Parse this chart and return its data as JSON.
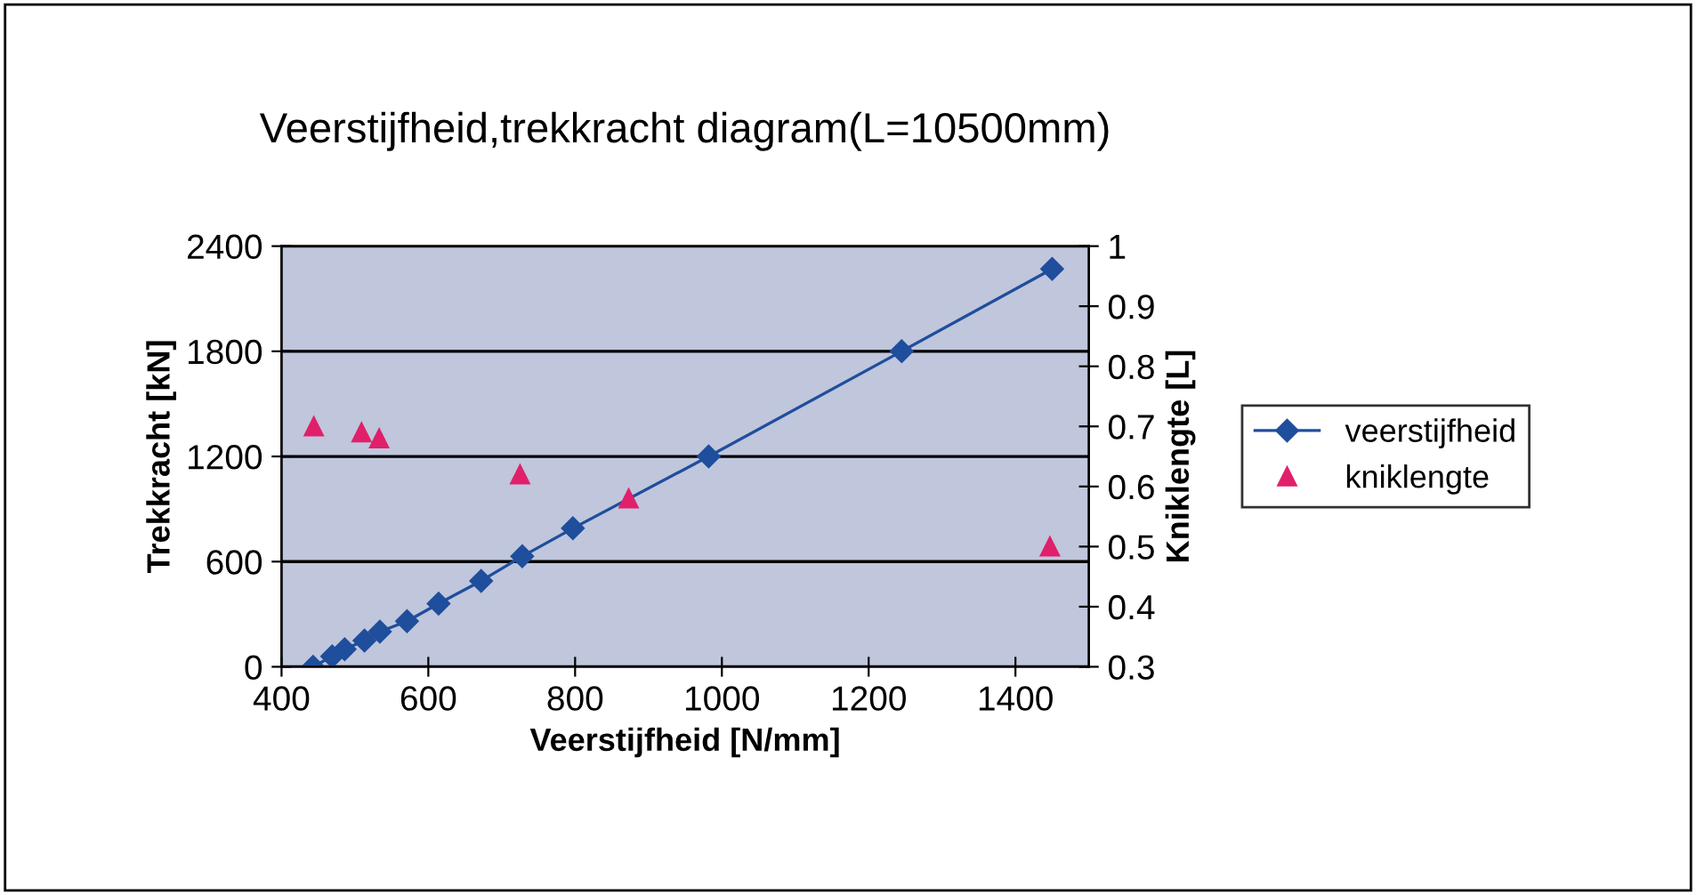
{
  "chart_data": {
    "type": "line",
    "title": "Veerstijfheid,trekkracht diagram(L=10500mm)",
    "xlabel": "Veerstijfheid [N/mm]",
    "ylabel": "Trekkracht [kN]",
    "y2label": "Kniklengte [L]",
    "xlim": [
      400,
      1500
    ],
    "xticks": [
      400,
      600,
      800,
      1000,
      1200,
      1400
    ],
    "ylim": [
      0,
      2400
    ],
    "yticks": [
      0,
      600,
      1200,
      1800,
      2400
    ],
    "y2lim": [
      0.3,
      1
    ],
    "y2ticks": [
      0.3,
      0.4,
      0.5,
      0.6,
      0.7,
      0.8,
      0.9,
      1
    ],
    "grid": "y",
    "legend": "right",
    "series": [
      {
        "name": "veerstijfheid",
        "marker": "diamond",
        "color": "#1f4e9c",
        "x": [
          443,
          469,
          486,
          513,
          534,
          571,
          614,
          672,
          728,
          797,
          982,
          1245,
          1450
        ],
        "values": [
          0,
          60,
          100,
          150,
          200,
          260,
          360,
          490,
          630,
          790,
          1200,
          1800,
          2270
        ]
      },
      {
        "name": "kniklengte",
        "type": "scatter",
        "marker": "triangle",
        "color": "#e0206a",
        "axis": "y2",
        "x": [
          444,
          509,
          533,
          725,
          873,
          1447
        ],
        "values": [
          0.7,
          0.69,
          0.68,
          0.62,
          0.58,
          0.5
        ]
      }
    ]
  }
}
